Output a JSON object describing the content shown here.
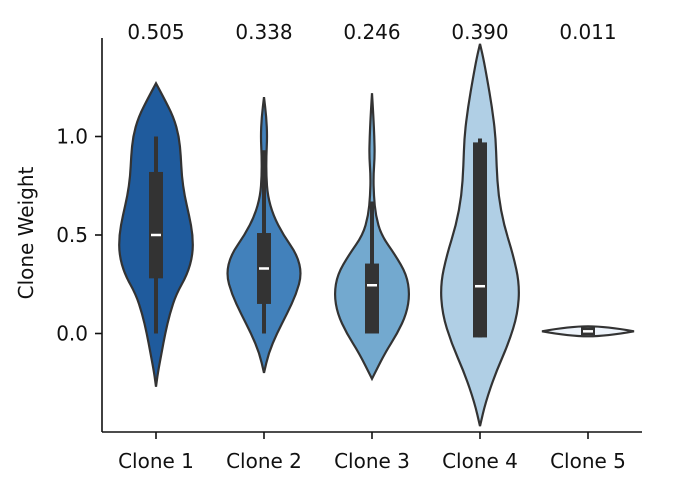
{
  "chart_data": {
    "type": "violin",
    "title": "",
    "xlabel": "",
    "ylabel": "Clone Weight",
    "ylim": [
      -0.5,
      1.5
    ],
    "yticks": [
      0.0,
      0.5,
      1.0
    ],
    "ytick_labels": [
      "0.0",
      "0.5",
      "1.0"
    ],
    "grid": false,
    "categories": [
      "Clone 1",
      "Clone 2",
      "Clone 3",
      "Clone 4",
      "Clone 5"
    ],
    "top_labels": [
      "0.505",
      "0.338",
      "0.246",
      "0.390",
      "0.011"
    ],
    "colors": [
      "#1f5b9d",
      "#4281bb",
      "#73a9cf",
      "#b0cfe5",
      "#eef4fb"
    ],
    "series": [
      {
        "category": "Clone 1",
        "violin_min": -0.27,
        "violin_max": 1.27,
        "box": {
          "whisker_low": 0.0,
          "q1": 0.28,
          "median": 0.5,
          "q3": 0.82,
          "whisker_high": 1.0
        },
        "profile": [
          [
            -0.27,
            0.0
          ],
          [
            -0.2,
            0.04
          ],
          [
            -0.1,
            0.12
          ],
          [
            0.0,
            0.2
          ],
          [
            0.1,
            0.3
          ],
          [
            0.2,
            0.44
          ],
          [
            0.3,
            0.68
          ],
          [
            0.4,
            0.8
          ],
          [
            0.5,
            0.8
          ],
          [
            0.6,
            0.72
          ],
          [
            0.7,
            0.62
          ],
          [
            0.8,
            0.56
          ],
          [
            0.9,
            0.54
          ],
          [
            1.0,
            0.5
          ],
          [
            1.1,
            0.38
          ],
          [
            1.2,
            0.16
          ],
          [
            1.27,
            0.0
          ]
        ]
      },
      {
        "category": "Clone 2",
        "violin_min": -0.2,
        "violin_max": 1.2,
        "box": {
          "whisker_low": 0.0,
          "q1": 0.15,
          "median": 0.33,
          "q3": 0.51,
          "whisker_high": 0.93
        },
        "profile": [
          [
            -0.2,
            0.0
          ],
          [
            -0.1,
            0.1
          ],
          [
            0.0,
            0.28
          ],
          [
            0.1,
            0.5
          ],
          [
            0.2,
            0.7
          ],
          [
            0.3,
            0.82
          ],
          [
            0.4,
            0.72
          ],
          [
            0.5,
            0.42
          ],
          [
            0.6,
            0.2
          ],
          [
            0.7,
            0.08
          ],
          [
            0.8,
            0.05
          ],
          [
            0.9,
            0.05
          ],
          [
            1.0,
            0.07
          ],
          [
            1.1,
            0.05
          ],
          [
            1.2,
            0.0
          ]
        ]
      },
      {
        "category": "Clone 3",
        "violin_min": -0.23,
        "violin_max": 1.22,
        "box": {
          "whisker_low": 0.0,
          "q1": 0.0,
          "median": 0.245,
          "q3": 0.355,
          "whisker_high": 0.67
        },
        "profile": [
          [
            -0.23,
            0.0
          ],
          [
            -0.1,
            0.28
          ],
          [
            0.0,
            0.55
          ],
          [
            0.1,
            0.75
          ],
          [
            0.2,
            0.82
          ],
          [
            0.3,
            0.75
          ],
          [
            0.4,
            0.5
          ],
          [
            0.5,
            0.2
          ],
          [
            0.6,
            0.08
          ],
          [
            0.7,
            0.04
          ],
          [
            0.8,
            0.03
          ],
          [
            0.9,
            0.06
          ],
          [
            1.0,
            0.05
          ],
          [
            1.1,
            0.03
          ],
          [
            1.22,
            0.0
          ]
        ]
      },
      {
        "category": "Clone 4",
        "violin_min": -0.47,
        "violin_max": 1.47,
        "box": {
          "whisker_low": -0.02,
          "q1": -0.02,
          "median": 0.24,
          "q3": 0.97,
          "whisker_high": 0.99
        },
        "profile": [
          [
            -0.47,
            0.0
          ],
          [
            -0.35,
            0.12
          ],
          [
            -0.2,
            0.34
          ],
          [
            -0.05,
            0.62
          ],
          [
            0.1,
            0.82
          ],
          [
            0.25,
            0.86
          ],
          [
            0.4,
            0.72
          ],
          [
            0.55,
            0.52
          ],
          [
            0.7,
            0.4
          ],
          [
            0.85,
            0.36
          ],
          [
            1.0,
            0.34
          ],
          [
            1.15,
            0.26
          ],
          [
            1.3,
            0.15
          ],
          [
            1.4,
            0.07
          ],
          [
            1.47,
            0.0
          ]
        ]
      },
      {
        "category": "Clone 5",
        "violin_min": 0.0,
        "violin_max": 0.03,
        "box": {
          "whisker_low": 0.0,
          "q1": 0.0,
          "median": 0.011,
          "q3": 0.025,
          "whisker_high": 0.03
        },
        "profile": [
          [
            0.0,
            0.0
          ],
          [
            0.006,
            0.55
          ],
          [
            0.012,
            0.95
          ],
          [
            0.018,
            0.7
          ],
          [
            0.024,
            0.35
          ],
          [
            0.03,
            0.0
          ]
        ]
      }
    ]
  }
}
